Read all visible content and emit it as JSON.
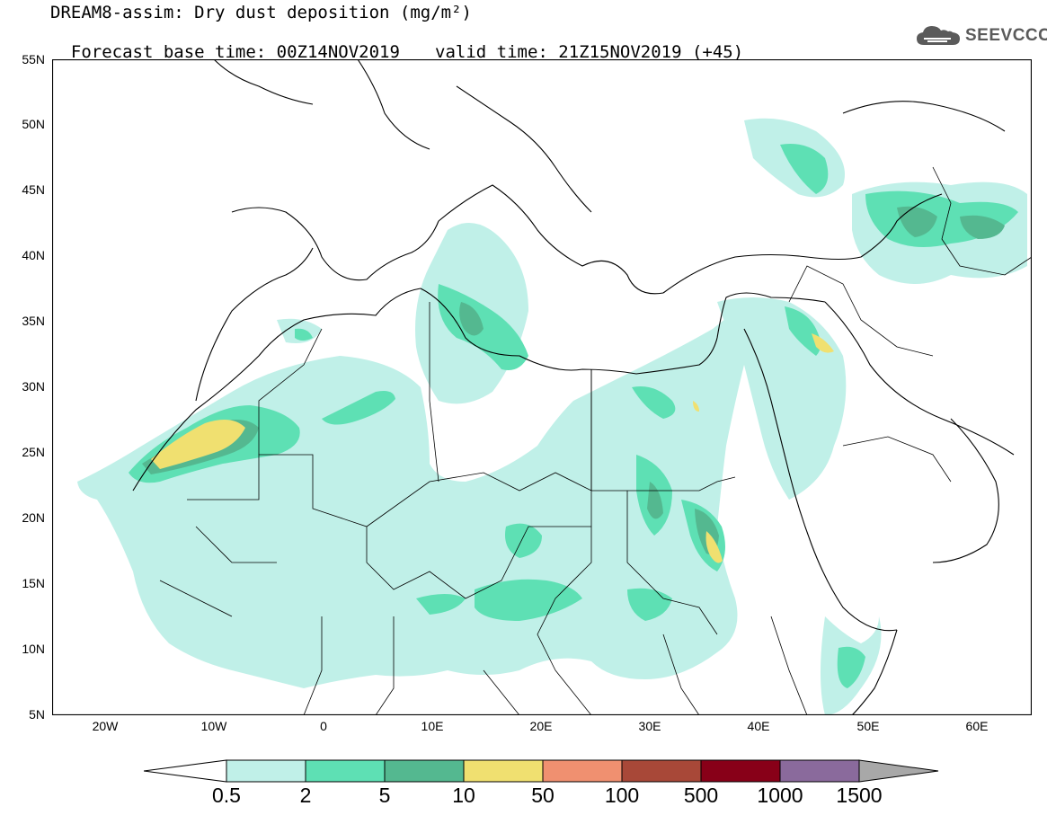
{
  "title": {
    "line1": "DREAM8-assim: Dry dust deposition (mg/m²)",
    "base_time": "Forecast base time: 00Z14NOV2019",
    "valid_time": "valid time: 21Z15NOV2019 (+45)"
  },
  "logo": {
    "text": "SEEVCCC",
    "icon": "cloud-icon"
  },
  "map": {
    "lat_labels": [
      "55N",
      "50N",
      "45N",
      "40N",
      "35N",
      "30N",
      "25N",
      "20N",
      "15N",
      "10N",
      "5N"
    ],
    "lon_labels": [
      "20W",
      "10W",
      "0",
      "10E",
      "20E",
      "30E",
      "40E",
      "50E",
      "60E"
    ],
    "lon_range": [
      -25,
      65
    ],
    "lat_range": [
      5,
      55
    ]
  },
  "colorbar": {
    "labels": [
      "0.5",
      "2",
      "5",
      "10",
      "50",
      "100",
      "500",
      "1000",
      "1500"
    ],
    "colors": [
      "#c0f0e8",
      "#5ee0b4",
      "#54b890",
      "#f0e070",
      "#f09070",
      "#a84838",
      "#880018",
      "#8a6a9c"
    ],
    "under_color": "#ffffff",
    "over_color": "#a8a8a8"
  },
  "legend_colors": {
    "c1": "#c0f0e8",
    "c2": "#5ee0b4",
    "c3": "#54b890",
    "c4": "#f0e070"
  }
}
